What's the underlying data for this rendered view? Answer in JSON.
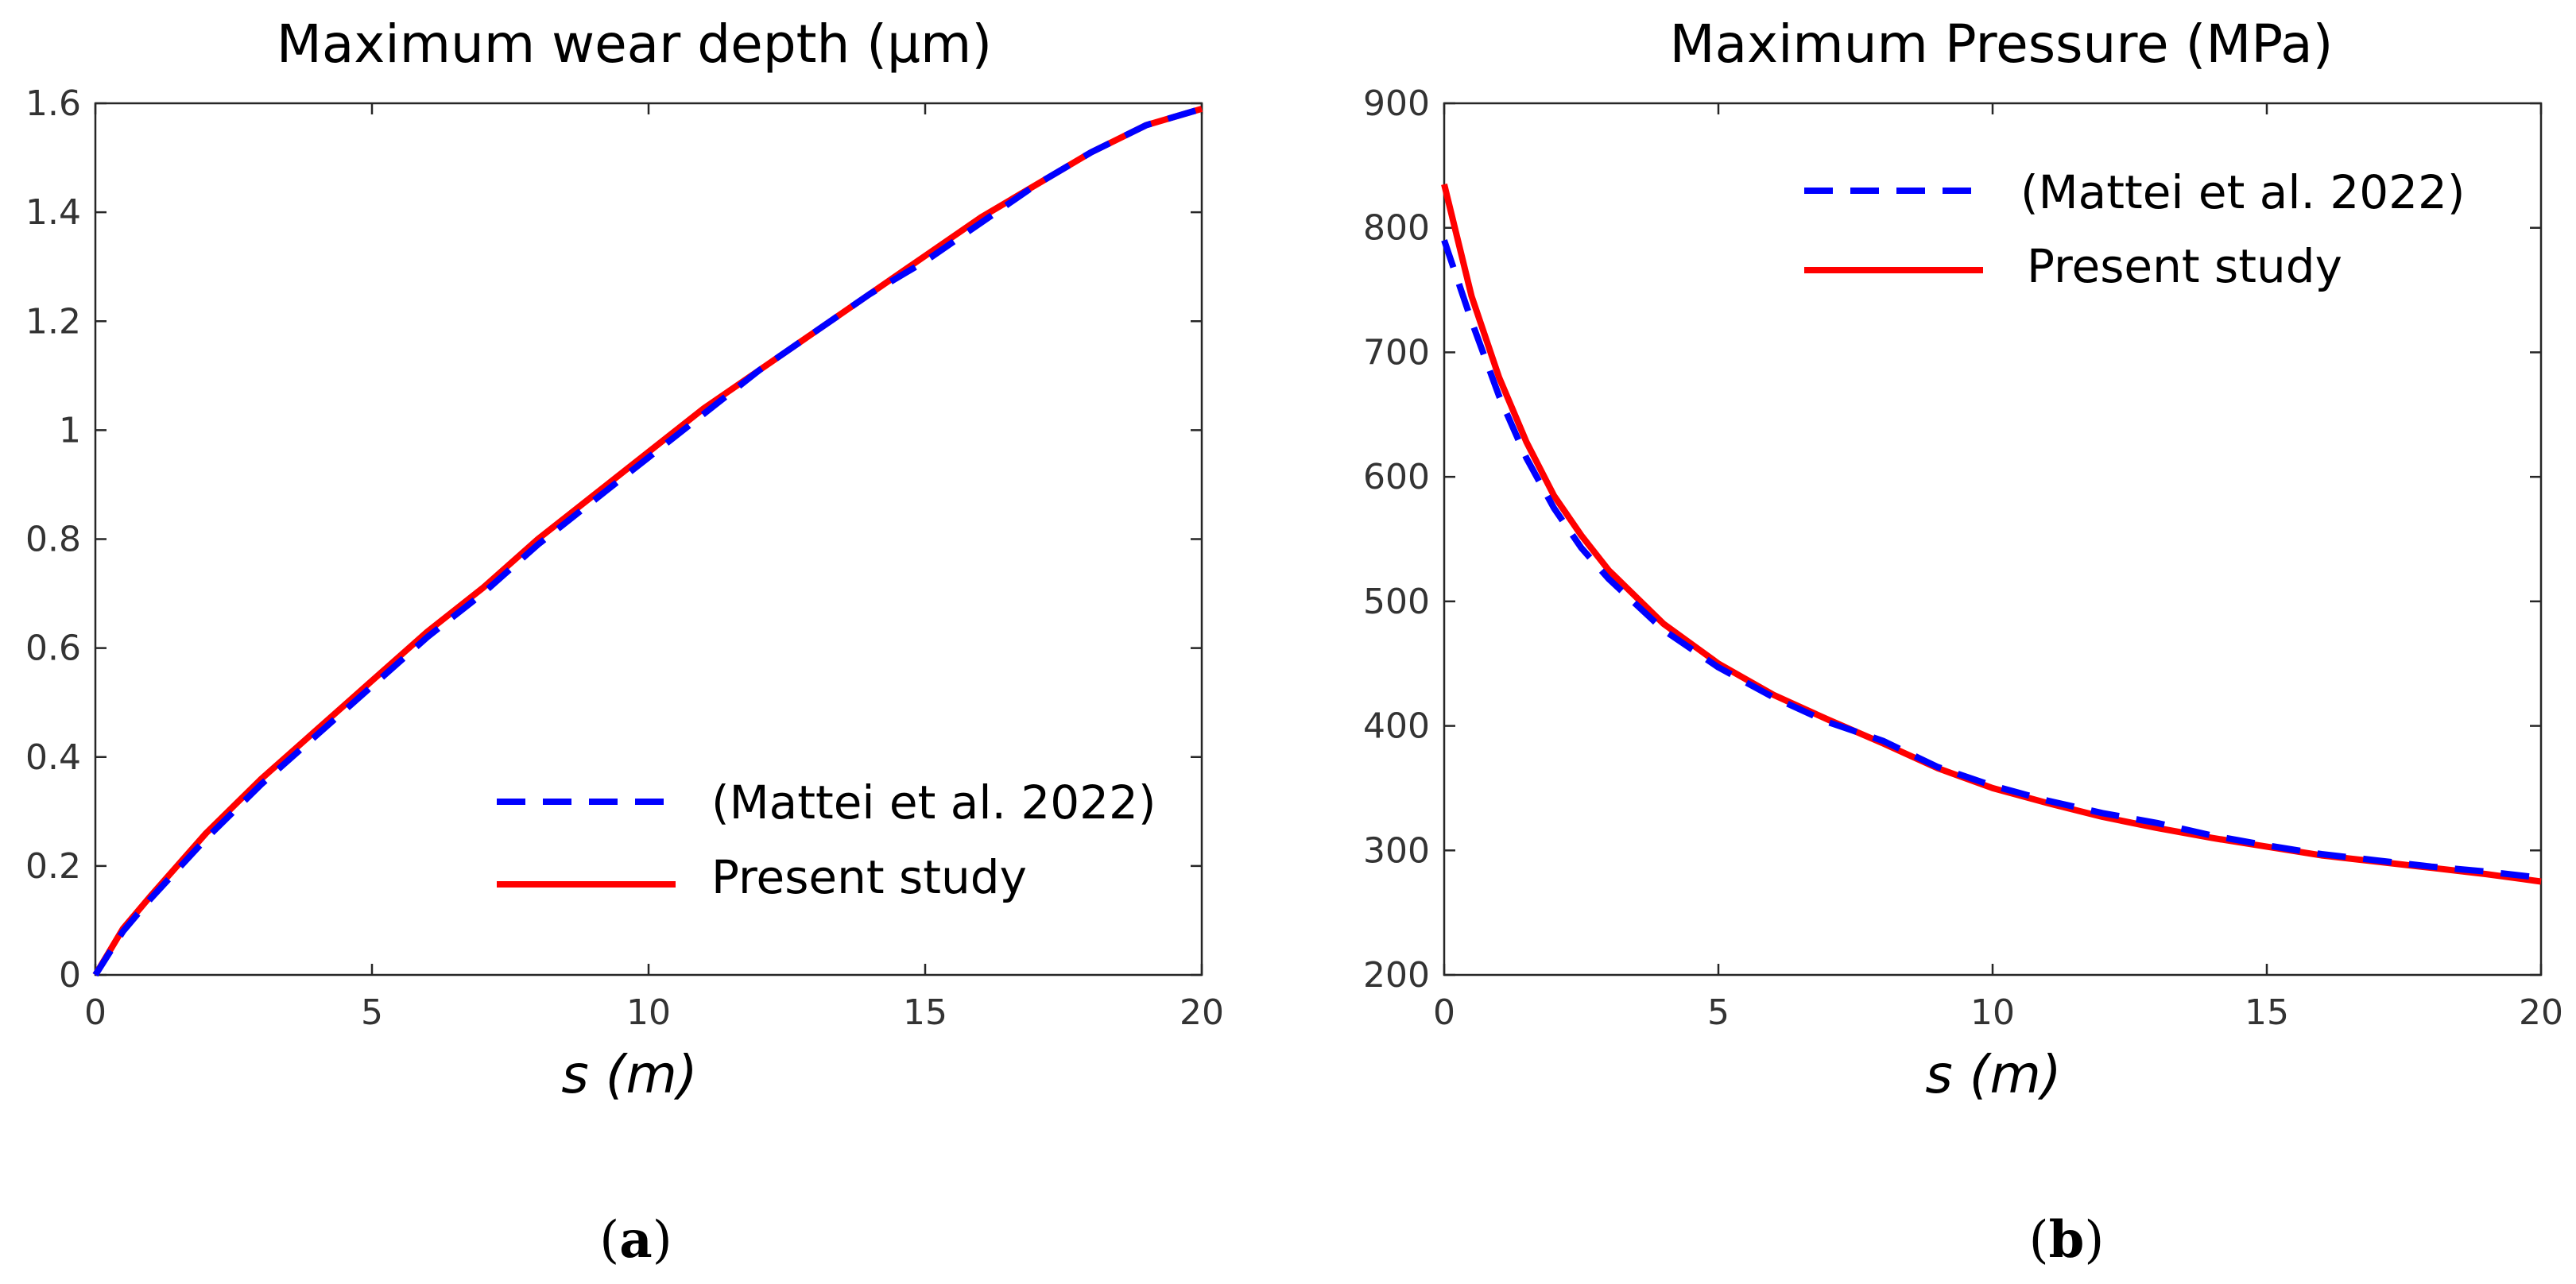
{
  "chart_data": [
    {
      "type": "line",
      "title": "Maximum wear depth (μm)",
      "xlabel": "s (m)",
      "ylabel": "",
      "panel_label": "a",
      "xlim": [
        0,
        20
      ],
      "ylim": [
        0,
        1.6
      ],
      "xticks": [
        0,
        5,
        10,
        15,
        20
      ],
      "yticks": [
        0,
        0.2,
        0.4,
        0.6,
        0.8,
        1,
        1.2,
        1.4,
        1.6
      ],
      "legend_position": "bottom-right",
      "series": [
        {
          "name": "(Mattei et al. 2022)",
          "style": "dashed",
          "color": "#0000ff",
          "x": [
            0,
            0.5,
            1,
            2,
            3,
            4,
            5,
            6,
            7,
            8,
            9,
            10,
            11,
            12,
            13,
            14,
            15,
            16,
            17,
            18,
            19,
            20
          ],
          "y": [
            0,
            0.08,
            0.14,
            0.25,
            0.35,
            0.44,
            0.53,
            0.62,
            0.7,
            0.79,
            0.87,
            0.95,
            1.03,
            1.11,
            1.18,
            1.25,
            1.31,
            1.38,
            1.45,
            1.51,
            1.56,
            1.59
          ]
        },
        {
          "name": "Present study",
          "style": "solid",
          "color": "#ff0000",
          "x": [
            0,
            0.5,
            1,
            2,
            3,
            4,
            5,
            6,
            7,
            8,
            9,
            10,
            11,
            12,
            13,
            14,
            15,
            16,
            17,
            18,
            19,
            20
          ],
          "y": [
            0,
            0.085,
            0.145,
            0.26,
            0.36,
            0.45,
            0.54,
            0.63,
            0.71,
            0.8,
            0.88,
            0.96,
            1.04,
            1.11,
            1.18,
            1.25,
            1.32,
            1.39,
            1.45,
            1.51,
            1.56,
            1.59
          ]
        }
      ]
    },
    {
      "type": "line",
      "title": "Maximum Pressure (MPa)",
      "xlabel": "s (m)",
      "ylabel": "",
      "panel_label": "b",
      "xlim": [
        0,
        20
      ],
      "ylim": [
        200,
        900
      ],
      "xticks": [
        0,
        5,
        10,
        15,
        20
      ],
      "yticks": [
        200,
        300,
        400,
        500,
        600,
        700,
        800,
        900
      ],
      "legend_position": "top-right",
      "series": [
        {
          "name": "(Mattei et al. 2022)",
          "style": "dashed",
          "color": "#0000ff",
          "x": [
            0,
            0.5,
            1,
            1.5,
            2,
            2.5,
            3,
            4,
            5,
            6,
            7,
            8,
            9,
            10,
            11,
            12,
            13,
            14,
            15,
            16,
            17,
            18,
            19,
            20
          ],
          "y": [
            790,
            725,
            665,
            615,
            575,
            543,
            518,
            477,
            447,
            423,
            403,
            388,
            367,
            352,
            340,
            330,
            322,
            312,
            304,
            297,
            292,
            287,
            283,
            278
          ]
        },
        {
          "name": "Present study",
          "style": "solid",
          "color": "#ff0000",
          "x": [
            0,
            0.5,
            1,
            1.5,
            2,
            2.5,
            3,
            4,
            5,
            6,
            7,
            8,
            9,
            10,
            11,
            12,
            13,
            14,
            15,
            16,
            17,
            18,
            19,
            20
          ],
          "y": [
            835,
            745,
            680,
            628,
            585,
            553,
            525,
            482,
            450,
            425,
            405,
            386,
            366,
            350,
            338,
            327,
            318,
            310,
            303,
            296,
            291,
            286,
            281,
            275
          ]
        }
      ]
    }
  ]
}
